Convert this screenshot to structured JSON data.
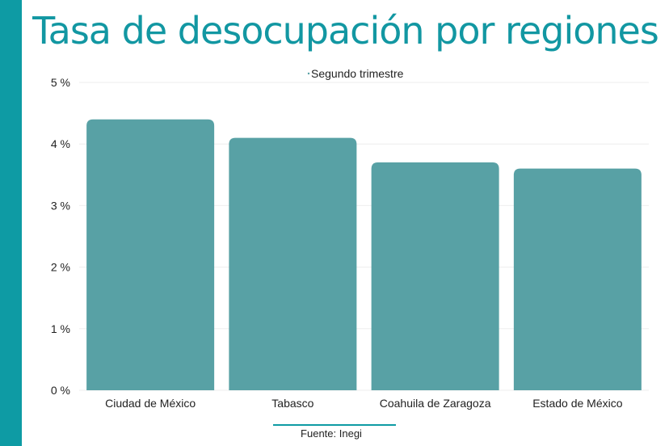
{
  "header": {
    "title": "Tasa de desocupación por regiones"
  },
  "footer": {
    "source": "Fuente: Inegi"
  },
  "colors": {
    "accent": "#0e9ba4",
    "title": "#1297a2",
    "bar": "#58a1a5",
    "grid": "#eeeeee",
    "text": "#222222"
  },
  "chart_data": {
    "type": "bar",
    "title": "",
    "legend": {
      "entries": [
        "Segundo trimestre"
      ],
      "position": "top-center"
    },
    "categories": [
      "Ciudad de México",
      "Tabasco",
      "Coahuila de Zaragoza",
      "Estado de México"
    ],
    "series": [
      {
        "name": "Segundo trimestre",
        "values": [
          4.4,
          4.1,
          3.7,
          3.6
        ]
      }
    ],
    "ylim": [
      0,
      5
    ],
    "yticks": [
      0,
      1,
      2,
      3,
      4,
      5
    ],
    "ytick_labels": [
      "0 %",
      "1 %",
      "2 %",
      "3 %",
      "4 %",
      "5 %"
    ],
    "xlabel": "",
    "ylabel": "",
    "grid": true
  }
}
